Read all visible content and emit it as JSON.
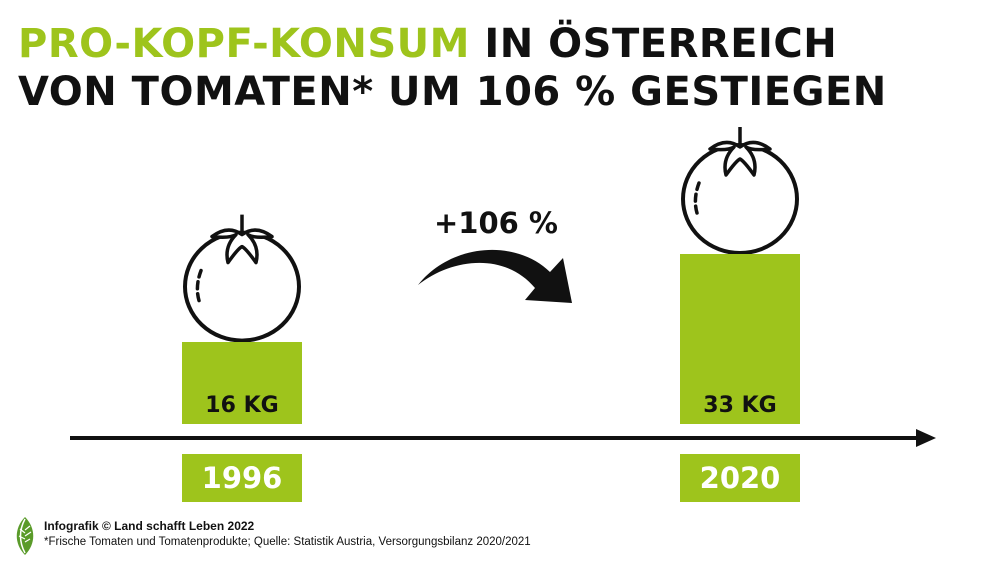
{
  "title": {
    "accent": "PRO-KOPF-KONSUM",
    "line1_rest": " IN ÖSTERREICH",
    "line2": "VON TOMATEN* UM 106 % GESTIEGEN"
  },
  "colors": {
    "accent": "#9ec41c",
    "text": "#111111",
    "year_text": "#ffffff"
  },
  "chart_data": {
    "type": "bar",
    "title": "PRO-KOPF-KONSUM IN ÖSTERREICH VON TOMATEN* UM 106 % GESTIEGEN",
    "categories": [
      "1996",
      "2020"
    ],
    "values": [
      16,
      33
    ],
    "unit": "KG",
    "value_labels": [
      "16 KG",
      "33 KG"
    ],
    "change_label": "+106 %",
    "ylim": [
      0,
      33
    ]
  },
  "icons": {
    "tomato": "tomato-icon",
    "arrow": "curved-arrow-icon",
    "axis": "timeline-arrow",
    "logo": "leaf-logo-icon"
  },
  "footer": {
    "credit": "Infografik © Land schafft Leben 2022",
    "source": "*Frische Tomaten und Tomatenprodukte; Quelle: Statistik Austria, Versorgungsbilanz 2020/2021"
  }
}
